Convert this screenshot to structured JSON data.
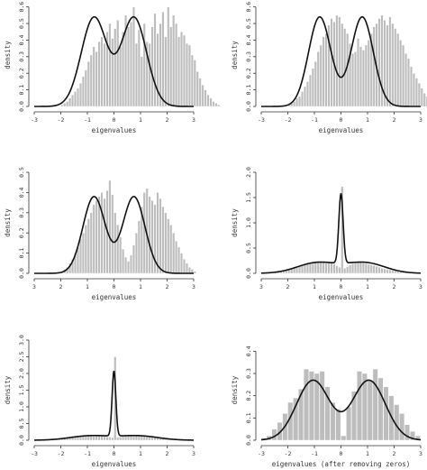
{
  "chart_data": [
    {
      "type": "histogram+line",
      "xlabel": "eigenvalues",
      "ylabel": "density",
      "xticks": [
        -3,
        -2,
        -1,
        0,
        1,
        2,
        3
      ],
      "yticks": [
        0.0,
        0.1,
        0.2,
        0.3,
        0.4,
        0.5,
        0.6
      ],
      "xlim": [
        -3,
        3
      ],
      "ylim": [
        0,
        0.62
      ],
      "bin_width": 0.1,
      "bin_start": -2.0,
      "bars": [
        0.01,
        0.02,
        0.03,
        0.05,
        0.07,
        0.09,
        0.11,
        0.14,
        0.18,
        0.22,
        0.27,
        0.31,
        0.36,
        0.33,
        0.39,
        0.42,
        0.38,
        0.45,
        0.5,
        0.41,
        0.47,
        0.52,
        0.36,
        0.45,
        0.55,
        0.48,
        0.51,
        0.6,
        0.38,
        0.46,
        0.3,
        0.5,
        0.39,
        0.38,
        0.48,
        0.56,
        0.44,
        0.5,
        0.57,
        0.42,
        0.6,
        0.48,
        0.55,
        0.5,
        0.42,
        0.45,
        0.43,
        0.38,
        0.37,
        0.31,
        0.28,
        0.21,
        0.17,
        0.13,
        0.1,
        0.07,
        0.05,
        0.03,
        0.02,
        0.01
      ],
      "curve": {
        "type": "bimodal",
        "peak": 0.54,
        "centers": [
          -0.75,
          0.75
        ],
        "sigma": 0.48
      }
    },
    {
      "type": "histogram+line",
      "xlabel": "eigenvalues",
      "ylabel": "density",
      "xticks": [
        -3,
        -2,
        -1,
        0,
        1,
        2,
        3
      ],
      "yticks": [
        0.0,
        0.1,
        0.2,
        0.3,
        0.4,
        0.5,
        0.6
      ],
      "xlim": [
        -3,
        3
      ],
      "ylim": [
        0,
        0.62
      ],
      "bin_width": 0.1,
      "bin_start": -2.0,
      "bars": [
        0.01,
        0.02,
        0.03,
        0.05,
        0.06,
        0.09,
        0.12,
        0.15,
        0.19,
        0.23,
        0.27,
        0.33,
        0.37,
        0.42,
        0.44,
        0.49,
        0.53,
        0.51,
        0.55,
        0.54,
        0.5,
        0.47,
        0.44,
        0.38,
        0.32,
        0.33,
        0.41,
        0.36,
        0.34,
        0.37,
        0.4,
        0.44,
        0.48,
        0.5,
        0.53,
        0.55,
        0.52,
        0.49,
        0.54,
        0.5,
        0.47,
        0.44,
        0.4,
        0.37,
        0.32,
        0.29,
        0.24,
        0.2,
        0.17,
        0.14,
        0.11,
        0.08,
        0.06,
        0.04,
        0.03,
        0.02,
        0.01,
        0.0,
        0.0,
        0.0
      ],
      "curve": {
        "type": "bimodal",
        "peak": 0.54,
        "centers": [
          -0.8,
          0.8
        ],
        "sigma": 0.42
      }
    },
    {
      "type": "histogram+line",
      "xlabel": "eigenvalues",
      "ylabel": "density",
      "xticks": [
        3,
        2,
        1,
        0,
        1,
        2,
        3
      ],
      "yticks": [
        0.0,
        0.1,
        0.2,
        0.3,
        0.4,
        0.5
      ],
      "xlim": [
        -3,
        3
      ],
      "ylim": [
        0,
        0.5
      ],
      "bin_width": 0.1,
      "bin_start": -2.0,
      "bars": [
        0.01,
        0.02,
        0.03,
        0.05,
        0.07,
        0.1,
        0.13,
        0.17,
        0.2,
        0.24,
        0.27,
        0.3,
        0.34,
        0.36,
        0.38,
        0.4,
        0.37,
        0.41,
        0.46,
        0.39,
        0.3,
        0.24,
        0.18,
        0.12,
        0.08,
        0.06,
        0.09,
        0.14,
        0.2,
        0.26,
        0.33,
        0.4,
        0.42,
        0.38,
        0.36,
        0.34,
        0.4,
        0.37,
        0.33,
        0.3,
        0.27,
        0.24,
        0.2,
        0.16,
        0.13,
        0.1,
        0.07,
        0.05,
        0.03,
        0.02,
        0.01,
        0.0,
        0.0,
        0.0,
        0.0,
        0.0,
        0.0,
        0.0,
        0.0,
        0.0
      ],
      "curve": {
        "type": "bimodal",
        "peak": 0.38,
        "centers": [
          -0.75,
          0.75
        ],
        "sigma": 0.42
      }
    },
    {
      "type": "histogram+line",
      "xlabel": "eigenvalues",
      "ylabel": "density",
      "xticks": [
        3,
        2,
        1,
        0,
        1,
        2,
        3
      ],
      "yticks": [
        0.0,
        0.5,
        1.0,
        1.5,
        2.0
      ],
      "xlim": [
        -3,
        3
      ],
      "ylim": [
        0,
        2.0
      ],
      "bin_width": 0.1,
      "bin_start": -2.5,
      "bars": [
        0.02,
        0.03,
        0.04,
        0.05,
        0.06,
        0.07,
        0.08,
        0.1,
        0.11,
        0.13,
        0.15,
        0.17,
        0.18,
        0.19,
        0.2,
        0.21,
        0.21,
        0.22,
        0.23,
        0.2,
        0.21,
        0.22,
        0.19,
        0.15,
        0.12,
        1.72,
        0.1,
        0.13,
        0.17,
        0.19,
        0.2,
        0.22,
        0.21,
        0.2,
        0.19,
        0.18,
        0.17,
        0.16,
        0.14,
        0.12,
        0.1,
        0.09,
        0.08,
        0.07,
        0.06,
        0.05,
        0.04,
        0.03,
        0.02,
        0.02
      ],
      "curve": {
        "type": "spike",
        "spike_height": 1.38,
        "spike_sigma": 0.08,
        "base_peak": 0.22,
        "base_centers": [
          -0.9,
          0.9
        ],
        "base_sigma": 0.75
      }
    },
    {
      "type": "histogram+line",
      "xlabel": "eigenvalues",
      "ylabel": "density",
      "xticks": [
        -3,
        -2,
        -1,
        0,
        1,
        2,
        3
      ],
      "yticks": [
        0.0,
        0.5,
        1.0,
        1.5,
        2.0,
        2.5,
        3.0
      ],
      "xlim": [
        -3,
        3
      ],
      "ylim": [
        0,
        3.0
      ],
      "bin_width": 0.1,
      "bin_start": -2.5,
      "bars": [
        0.02,
        0.03,
        0.03,
        0.04,
        0.05,
        0.06,
        0.07,
        0.08,
        0.09,
        0.1,
        0.11,
        0.12,
        0.12,
        0.13,
        0.14,
        0.15,
        0.16,
        0.15,
        0.14,
        0.13,
        0.12,
        0.11,
        0.1,
        0.09,
        0.08,
        2.5,
        0.09,
        0.1,
        0.11,
        0.12,
        0.13,
        0.14,
        0.15,
        0.16,
        0.15,
        0.14,
        0.13,
        0.12,
        0.11,
        0.1,
        0.09,
        0.08,
        0.07,
        0.06,
        0.05,
        0.04,
        0.03,
        0.03,
        0.02,
        0.02
      ],
      "curve": {
        "type": "spike",
        "spike_height": 1.95,
        "spike_sigma": 0.07,
        "base_peak": 0.14,
        "base_centers": [
          -0.9,
          0.9
        ],
        "base_sigma": 0.75
      }
    },
    {
      "type": "histogram+line",
      "xlabel": "eigenvalues (after removing zeros)",
      "ylabel": "density",
      "xticks": [
        -3,
        -2,
        -1,
        0,
        1,
        2,
        3
      ],
      "yticks": [
        0.0,
        0.1,
        0.2,
        0.3,
        0.4
      ],
      "xlim": [
        -3,
        3
      ],
      "ylim": [
        0,
        0.45
      ],
      "bin_width": 0.2,
      "bin_start": -3.0,
      "bars": [
        0.01,
        0.02,
        0.05,
        0.08,
        0.12,
        0.17,
        0.19,
        0.23,
        0.32,
        0.31,
        0.3,
        0.31,
        0.24,
        0.17,
        0.14,
        0.02,
        0.15,
        0.22,
        0.31,
        0.3,
        0.27,
        0.32,
        0.28,
        0.24,
        0.2,
        0.16,
        0.12,
        0.07,
        0.04,
        0.02
      ],
      "curve": {
        "type": "bimodal",
        "peak": 0.27,
        "centers": [
          -1.05,
          1.05
        ],
        "sigma": 0.62
      }
    }
  ]
}
